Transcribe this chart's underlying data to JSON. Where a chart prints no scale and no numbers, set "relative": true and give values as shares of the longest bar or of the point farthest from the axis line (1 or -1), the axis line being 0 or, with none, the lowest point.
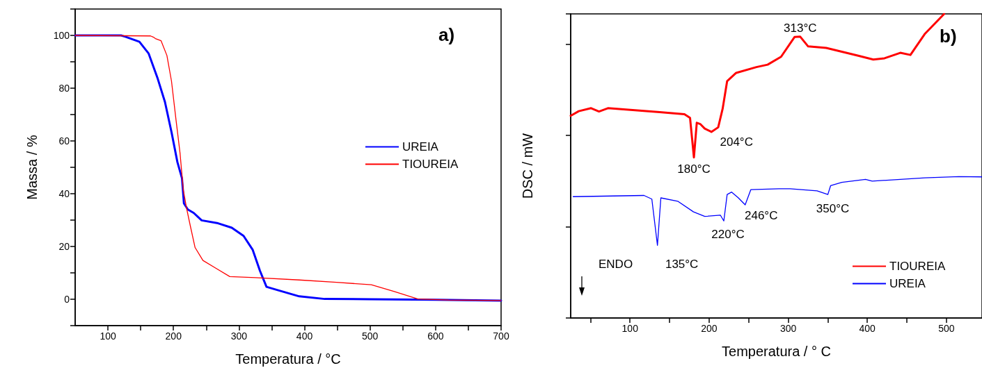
{
  "chart_data": [
    {
      "type": "line",
      "xlabel": "Temperatura / °C",
      "ylabel": "Massa / %",
      "annotations": [
        "a)"
      ],
      "legend": "right",
      "xlim": [
        50,
        700
      ],
      "ylim": [
        -10,
        110
      ],
      "xticks": [
        100,
        {
          "value": 150,
          "label": null
        },
        200,
        {
          "value": 250,
          "label": null
        },
        300,
        {
          "value": 350,
          "label": null
        },
        400,
        {
          "value": 450,
          "label": null
        },
        500,
        {
          "value": 550,
          "label": null
        },
        600,
        {
          "value": 650,
          "label": null
        },
        700
      ],
      "yticks": [
        {
          "value": -10,
          "label": null
        },
        0,
        {
          "value": 10,
          "label": null
        },
        20,
        {
          "value": 30,
          "label": null
        },
        40,
        {
          "value": 50,
          "label": null
        },
        60,
        {
          "value": 70,
          "label": null
        },
        80,
        {
          "value": 90,
          "label": null
        },
        100,
        {
          "value": 110,
          "label": null
        }
      ],
      "series": [
        {
          "name": "UREIA",
          "color": "#0000ff",
          "x": [
            50,
            120,
            126.5,
            148,
            162,
            176,
            187,
            197,
            206,
            213,
            216,
            222,
            231,
            243,
            268,
            289,
            307,
            321,
            332,
            342,
            360,
            392,
            431,
            500,
            600,
            700
          ],
          "values": [
            100,
            100,
            99.5,
            97.6,
            93.2,
            83.6,
            74.8,
            63.4,
            52,
            45.9,
            36.3,
            34,
            32.7,
            29.9,
            28.8,
            27.1,
            24,
            18.7,
            10.8,
            4.7,
            3.4,
            1.1,
            0.1,
            0,
            -0.2,
            -0.5
          ]
        },
        {
          "name": "TIOUREIA",
          "color": "#ff0000",
          "x": [
            50,
            165,
            169,
            172.5,
            181,
            190,
            197,
            204,
            210,
            215,
            220,
            226,
            233,
            245,
            265,
            286,
            325,
            392,
            449,
            502,
            537,
            573,
            620,
            700
          ],
          "values": [
            100,
            99.8,
            99.4,
            98.8,
            98,
            92.4,
            82.7,
            67.8,
            55.5,
            41.5,
            34.5,
            27.5,
            19.6,
            14.7,
            11.7,
            8.6,
            8.2,
            7.3,
            6.4,
            5.5,
            2.9,
            0.1,
            -0.3,
            -0.5
          ]
        }
      ]
    },
    {
      "type": "line",
      "xlabel": "Temperatura / ° C",
      "ylabel": "DSC / mW",
      "relative": true,
      "legend": "bottom right",
      "xlim": [
        25,
        545
      ],
      "xticks": [
        {
          "value": 50,
          "label": null
        },
        100,
        {
          "value": 150,
          "label": null
        },
        200,
        {
          "value": 250,
          "label": null
        },
        300,
        {
          "value": 350,
          "label": null
        },
        400,
        {
          "value": 450,
          "label": null
        },
        500
      ],
      "annotations": [
        "b)",
        "ENDO",
        {
          "text": "180°C",
          "x": 180.8,
          "y": 0.528
        },
        {
          "text": "204°C",
          "x": 202.9,
          "y": 0.612
        },
        {
          "text": "313°C",
          "x": 315.2,
          "y": 0.925
        },
        {
          "text": "135°C",
          "x": 134.7,
          "y": 0.239
        },
        {
          "text": "220°C",
          "x": 218.6,
          "y": 0.319
        },
        {
          "text": "246°C",
          "x": 245.6,
          "y": 0.372
        },
        {
          "text": "350°C",
          "x": 350.1,
          "y": 0.406
        }
      ],
      "series": [
        {
          "name": "TIOUREIA",
          "color": "#ff0000",
          "x": [
            25,
            35.2,
            50.8,
            60.8,
            72.1,
            103.4,
            137.5,
            168.8,
            175.9,
            180.8,
            184.4,
            188.7,
            194.4,
            202.9,
            211.5,
            217.1,
            222.8,
            234.2,
            259.8,
            274,
            291,
            308,
            315.2,
            325.2,
            348,
            387.7,
            407.6,
            421.8,
            441.7,
            454.5,
            473,
            497.2
          ],
          "values": [
            0.665,
            0.68,
            0.69,
            0.679,
            0.69,
            0.684,
            0.677,
            0.67,
            0.658,
            0.528,
            0.642,
            0.638,
            0.623,
            0.612,
            0.627,
            0.688,
            0.779,
            0.806,
            0.825,
            0.833,
            0.859,
            0.924,
            0.925,
            0.893,
            0.888,
            0.863,
            0.85,
            0.854,
            0.872,
            0.865,
            0.935,
            1
          ]
        },
        {
          "name": "UREIA",
          "color": "#0000ff",
          "x": [
            28.1,
            117.7,
            127.6,
            134.7,
            139,
            160.3,
            180.2,
            194.4,
            214.3,
            218.6,
            222.8,
            228.5,
            237,
            245.6,
            252.7,
            288.2,
            302.4,
            336.5,
            350.1,
            353.6,
            367.8,
            397.7,
            406.2,
            473,
            515.6,
            545
          ],
          "values": [
            0.399,
            0.403,
            0.391,
            0.239,
            0.395,
            0.384,
            0.349,
            0.334,
            0.338,
            0.319,
            0.406,
            0.414,
            0.395,
            0.372,
            0.422,
            0.425,
            0.425,
            0.418,
            0.406,
            0.435,
            0.446,
            0.456,
            0.45,
            0.461,
            0.465,
            0.464
          ]
        }
      ]
    }
  ]
}
